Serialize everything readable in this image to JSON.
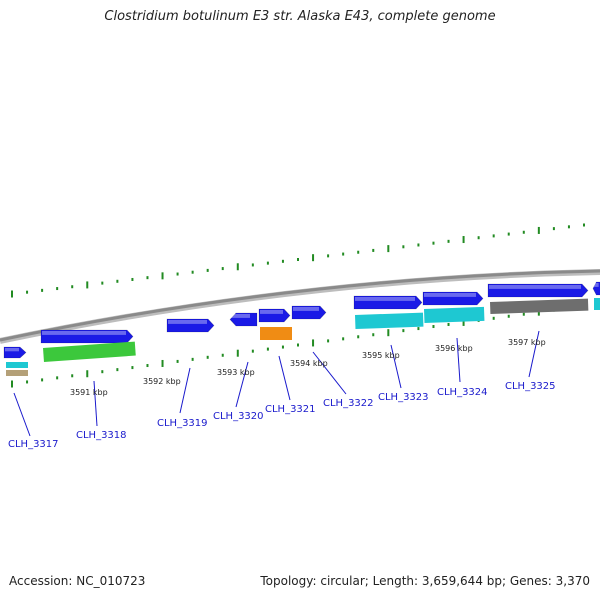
{
  "title": "Clostridium botulinum E3 str. Alaska E43, complete genome",
  "footer": {
    "accession": "Accession: NC_010723",
    "summary": "Topology: circular; Length: 3,659,644 bp; Genes: 3,370"
  },
  "colors": {
    "backbone": "#8a8a8a",
    "ticks": "#228b22",
    "gene_blue": "#1a1ae6",
    "gene_cyan": "#1ec8d2",
    "gene_green": "#3cc83c",
    "gene_orange": "#f08c14",
    "gene_gray": "#6e6e6e",
    "gene_tan": "#b4a078",
    "label": "#1a1acc"
  },
  "scale_labels": [
    "3591 kbp",
    "3592 kbp",
    "3593 kbp",
    "3594 kbp",
    "3595 kbp",
    "3596 kbp",
    "3597 kbp"
  ],
  "genes": [
    "CLH_3317",
    "CLH_3318",
    "CLH_3319",
    "CLH_3320",
    "CLH_3321",
    "CLH_3322",
    "CLH_3323",
    "CLH_3324",
    "CLH_3325"
  ]
}
